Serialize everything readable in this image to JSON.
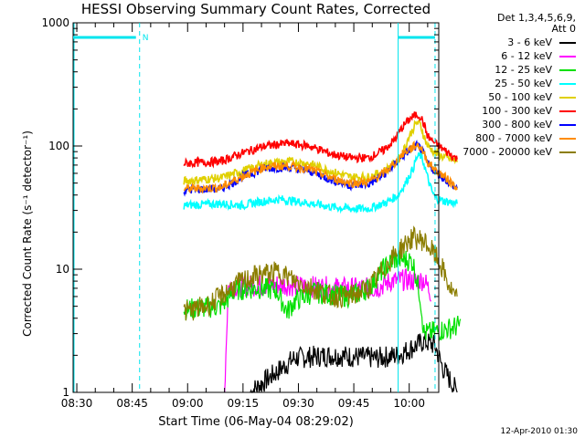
{
  "title": "HESSI Observing Summary Count Rates, Corrected",
  "legend_header": [
    "Det 1,3,4,5,6,9,",
    "Att 0"
  ],
  "timestamp": "12-Apr-2010 01:30",
  "chart_data": {
    "type": "line",
    "title": "HESSI Observing Summary Count Rates, Corrected",
    "xlabel": "Start Time (06-May-04 08:29:02)",
    "ylabel": "Corrected Count Rate (s⁻¹ detector⁻¹)",
    "x_unit": "minutes after 08:29:02",
    "xlim": [
      "08:29",
      "10:08"
    ],
    "x_tick_labels": [
      "08:30",
      "08:45",
      "09:00",
      "09:15",
      "09:30",
      "09:45",
      "10:00"
    ],
    "y_scale": "log",
    "ylim": [
      1,
      1000
    ],
    "y_tick_labels": [
      "1",
      "10",
      "100",
      "1000"
    ],
    "legend_position": "right-outside",
    "grid": false,
    "night_bar": {
      "from": "08:29",
      "to": "08:47",
      "label": "N",
      "color": "#00e5ee"
    },
    "markers": [
      {
        "time": "08:47",
        "style": "dashed",
        "color": "#00e5ee"
      },
      {
        "time": "09:57",
        "style": "solid",
        "color": "#00e5ee"
      },
      {
        "time": "10:07",
        "style": "dashed",
        "color": "#00e5ee"
      }
    ],
    "night_bar_2": {
      "from": "09:57",
      "to": "10:07",
      "color": "#00e5ee"
    },
    "series": [
      {
        "name": "3 - 6 keV",
        "color": "#000000",
        "points": [
          [
            48,
            1
          ],
          [
            60,
            1.9
          ],
          [
            70,
            2
          ],
          [
            82,
            1.9
          ],
          [
            88,
            2
          ],
          [
            95,
            2.6
          ],
          [
            98,
            2.4
          ],
          [
            100,
            1.6
          ],
          [
            104,
            1
          ]
        ]
      },
      {
        "name": "6 - 12 keV",
        "color": "#ff00ff",
        "points": [
          [
            41,
            1
          ],
          [
            42,
            7.2
          ],
          [
            55,
            7.5
          ],
          [
            65,
            7.2
          ],
          [
            75,
            7
          ],
          [
            82,
            7
          ],
          [
            86,
            8
          ],
          [
            90,
            8.2
          ],
          [
            92,
            8
          ],
          [
            95,
            8.2
          ],
          [
            97,
            6.3
          ]
        ]
      },
      {
        "name": "12 - 25 keV",
        "color": "#00e000",
        "points": [
          [
            30,
            4.7
          ],
          [
            40,
            5
          ],
          [
            44,
            6.8
          ],
          [
            50,
            7
          ],
          [
            55,
            6.8
          ],
          [
            58,
            4.5
          ],
          [
            60,
            5.5
          ],
          [
            65,
            6.5
          ],
          [
            75,
            6
          ],
          [
            80,
            7
          ],
          [
            84,
            10
          ],
          [
            87,
            12
          ],
          [
            90,
            12
          ],
          [
            92,
            11.5
          ],
          [
            94,
            6
          ],
          [
            95,
            3
          ],
          [
            100,
            3.2
          ],
          [
            105,
            3.5
          ]
        ]
      },
      {
        "name": "25 - 50 keV",
        "color": "#00ffff",
        "points": [
          [
            30,
            33
          ],
          [
            40,
            34
          ],
          [
            46,
            33
          ],
          [
            50,
            35
          ],
          [
            56,
            37
          ],
          [
            62,
            35
          ],
          [
            70,
            32
          ],
          [
            75,
            31
          ],
          [
            80,
            31
          ],
          [
            85,
            35
          ],
          [
            88,
            40
          ],
          [
            90,
            50
          ],
          [
            92,
            65
          ],
          [
            93,
            80
          ],
          [
            94,
            84
          ],
          [
            95,
            72
          ],
          [
            96,
            55
          ],
          [
            97,
            44
          ],
          [
            98,
            38
          ],
          [
            100,
            36
          ],
          [
            104,
            34
          ]
        ]
      },
      {
        "name": "50 - 100 keV",
        "color": "#e0d000",
        "points": [
          [
            30,
            52
          ],
          [
            40,
            55
          ],
          [
            46,
            63
          ],
          [
            52,
            72
          ],
          [
            58,
            75
          ],
          [
            64,
            72
          ],
          [
            70,
            62
          ],
          [
            75,
            56
          ],
          [
            80,
            56
          ],
          [
            84,
            62
          ],
          [
            87,
            72
          ],
          [
            89,
            85
          ],
          [
            91,
            120
          ],
          [
            93,
            155
          ],
          [
            94,
            150
          ],
          [
            95,
            120
          ],
          [
            96,
            100
          ],
          [
            98,
            88
          ],
          [
            100,
            82
          ],
          [
            104,
            75
          ]
        ]
      },
      {
        "name": "100 - 300 keV",
        "color": "#ff0000",
        "points": [
          [
            30,
            72
          ],
          [
            40,
            75
          ],
          [
            46,
            88
          ],
          [
            52,
            100
          ],
          [
            58,
            105
          ],
          [
            64,
            100
          ],
          [
            70,
            86
          ],
          [
            75,
            80
          ],
          [
            80,
            80
          ],
          [
            84,
            92
          ],
          [
            87,
            112
          ],
          [
            89,
            140
          ],
          [
            91,
            165
          ],
          [
            93,
            180
          ],
          [
            94,
            175
          ],
          [
            95,
            150
          ],
          [
            96,
            120
          ],
          [
            98,
            105
          ],
          [
            100,
            95
          ],
          [
            104,
            78
          ]
        ]
      },
      {
        "name": "300 - 800 keV",
        "color": "#0000ff",
        "points": [
          [
            30,
            44
          ],
          [
            40,
            45
          ],
          [
            46,
            56
          ],
          [
            52,
            66
          ],
          [
            58,
            67
          ],
          [
            64,
            63
          ],
          [
            70,
            53
          ],
          [
            75,
            48
          ],
          [
            80,
            49
          ],
          [
            84,
            58
          ],
          [
            87,
            70
          ],
          [
            89,
            82
          ],
          [
            91,
            92
          ],
          [
            93,
            100
          ],
          [
            94,
            97
          ],
          [
            95,
            85
          ],
          [
            96,
            72
          ],
          [
            98,
            62
          ],
          [
            100,
            56
          ],
          [
            104,
            45
          ]
        ]
      },
      {
        "name": "800 - 7000 keV",
        "color": "#ff8c00",
        "points": [
          [
            30,
            45
          ],
          [
            40,
            46
          ],
          [
            46,
            57
          ],
          [
            52,
            68
          ],
          [
            58,
            69
          ],
          [
            64,
            65
          ],
          [
            70,
            55
          ],
          [
            75,
            50
          ],
          [
            80,
            51
          ],
          [
            84,
            60
          ],
          [
            87,
            72
          ],
          [
            89,
            85
          ],
          [
            91,
            94
          ],
          [
            93,
            102
          ],
          [
            94,
            99
          ],
          [
            95,
            87
          ],
          [
            96,
            74
          ],
          [
            98,
            64
          ],
          [
            100,
            58
          ],
          [
            104,
            46
          ]
        ]
      },
      {
        "name": "7000 - 20000 keV",
        "color": "#8b7d00",
        "points": [
          [
            30,
            4.5
          ],
          [
            36,
            5
          ],
          [
            40,
            6
          ],
          [
            44,
            7.5
          ],
          [
            50,
            9
          ],
          [
            56,
            9.5
          ],
          [
            60,
            8
          ],
          [
            65,
            7
          ],
          [
            70,
            6
          ],
          [
            75,
            6
          ],
          [
            80,
            7
          ],
          [
            84,
            10
          ],
          [
            87,
            13
          ],
          [
            90,
            16
          ],
          [
            92,
            18
          ],
          [
            95,
            17
          ],
          [
            98,
            13
          ],
          [
            100,
            10
          ],
          [
            102,
            7
          ],
          [
            104,
            5.5
          ]
        ]
      }
    ]
  }
}
